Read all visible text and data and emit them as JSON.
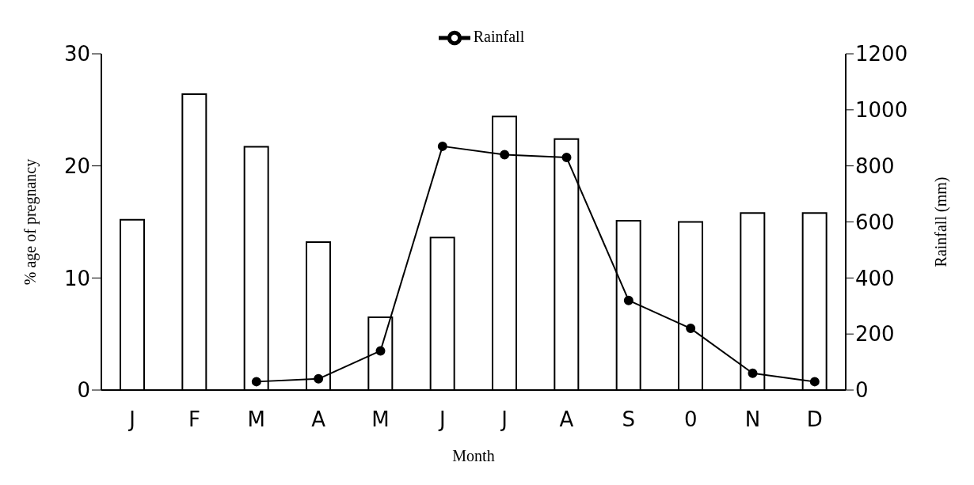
{
  "chart_data": {
    "type": "bar",
    "categories": [
      "J",
      "F",
      "M",
      "A",
      "M",
      "J",
      "J",
      "A",
      "S",
      "0",
      "N",
      "D"
    ],
    "series": [
      {
        "color": "#ffffff",
        "values": [
          15.2,
          26.4,
          21.7,
          13.2,
          6.5,
          13.6,
          24.4,
          22.4,
          15.1,
          15.0,
          15.8,
          15.8
        ]
      },
      {
        "type": "line",
        "name": "Rainfall",
        "axis": "y2",
        "color": "#000000",
        "values": [
          null,
          null,
          30,
          40,
          140,
          870,
          840,
          830,
          320,
          220,
          60,
          30
        ]
      }
    ],
    "xlabel": "Month",
    "ylabel": "% age of pregnancy",
    "y2label": "Rainfall (mm)",
    "ylim": [
      0,
      30
    ],
    "yticks": [
      0,
      10,
      20,
      30
    ],
    "y2lim": [
      0,
      1200
    ],
    "y2ticks": [
      0,
      200,
      400,
      600,
      800,
      1000,
      1200
    ],
    "grid": false,
    "legend": "top",
    "marker": "circle",
    "line_style": "solid"
  }
}
